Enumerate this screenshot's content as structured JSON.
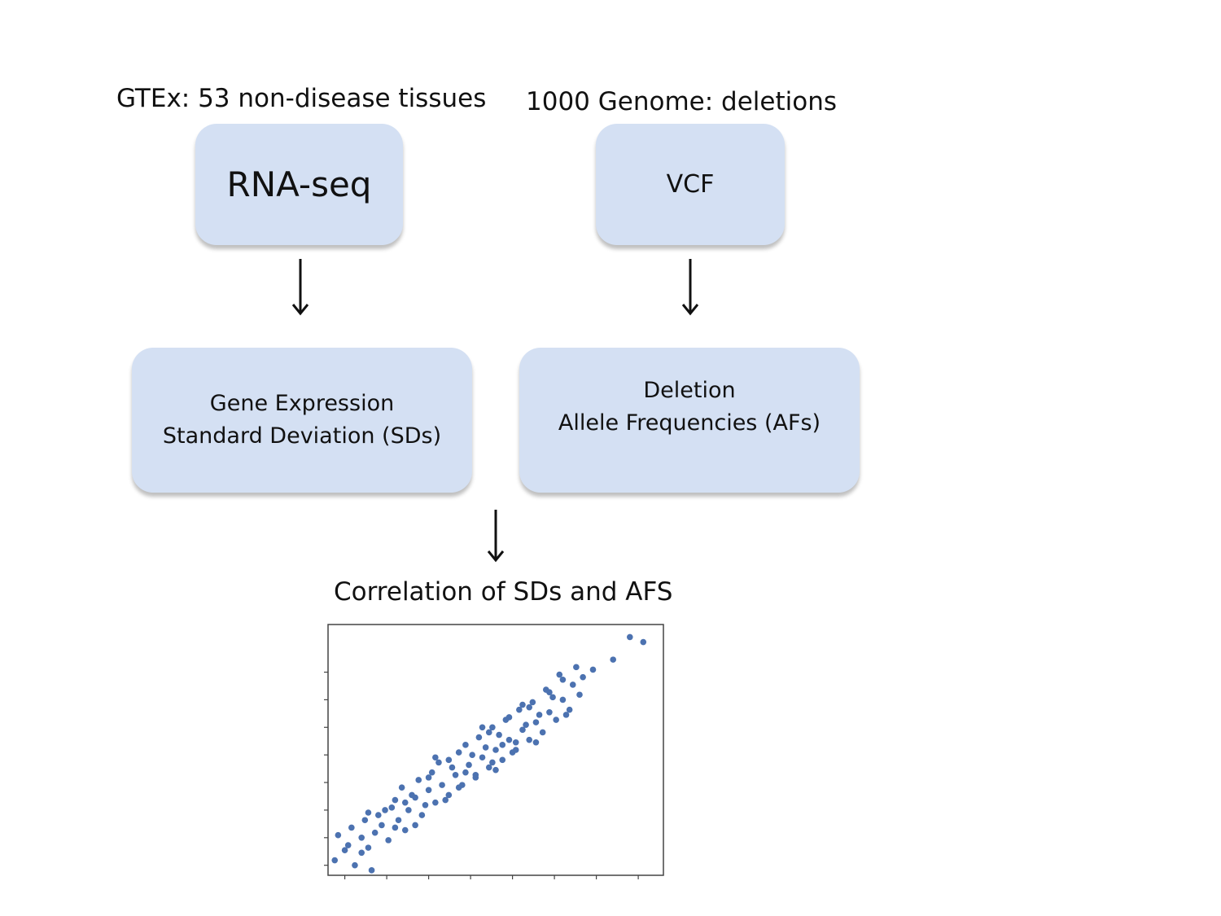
{
  "diagram": {
    "left_source_label": "GTEx: 53 non-disease tissues",
    "right_source_label": "1000 Genome: deletions",
    "rna_box": {
      "label": "RNA-seq"
    },
    "vcf_box": {
      "label": "VCF"
    },
    "gene_box": {
      "line1": "Gene Expression",
      "line2": "Standard Deviation (SDs)"
    },
    "deletion_box": {
      "line1": "Deletion",
      "line2": "Allele Frequencies (AFs)"
    },
    "result_label": "Correlation of SDs and AFS",
    "colors": {
      "box_fill": "#d4e0f3",
      "arrow": "#111111",
      "point": "#4c72b0"
    }
  },
  "chart_data": {
    "type": "scatter",
    "title": "",
    "xlabel": "",
    "ylabel": "",
    "xlim": [
      0,
      10
    ],
    "ylim": [
      0,
      10
    ],
    "grid": false,
    "x_ticks": [
      0.5,
      1.75,
      3.0,
      4.25,
      5.5,
      6.75,
      8.0,
      9.25
    ],
    "y_ticks": [
      0.4,
      1.5,
      2.6,
      3.7,
      4.8,
      5.9,
      7.0,
      8.1
    ],
    "series": [
      {
        "color": "#4c72b0",
        "points": [
          [
            0.2,
            0.6
          ],
          [
            0.6,
            1.2
          ],
          [
            1.3,
            0.2
          ],
          [
            0.8,
            0.4
          ],
          [
            0.3,
            1.6
          ],
          [
            0.7,
            1.9
          ],
          [
            1.0,
            1.5
          ],
          [
            1.2,
            1.1
          ],
          [
            1.4,
            1.7
          ],
          [
            1.6,
            2.0
          ],
          [
            1.1,
            2.2
          ],
          [
            1.8,
            1.4
          ],
          [
            1.5,
            2.4
          ],
          [
            1.9,
            2.7
          ],
          [
            2.1,
            2.2
          ],
          [
            2.3,
            1.8
          ],
          [
            2.0,
            3.0
          ],
          [
            2.4,
            2.6
          ],
          [
            2.6,
            3.1
          ],
          [
            2.8,
            2.4
          ],
          [
            3.0,
            3.4
          ],
          [
            2.2,
            3.5
          ],
          [
            2.7,
            3.8
          ],
          [
            3.2,
            2.9
          ],
          [
            3.4,
            3.6
          ],
          [
            3.1,
            4.1
          ],
          [
            3.6,
            3.2
          ],
          [
            3.8,
            4.0
          ],
          [
            3.3,
            4.5
          ],
          [
            4.0,
            3.6
          ],
          [
            4.2,
            4.4
          ],
          [
            3.9,
            4.9
          ],
          [
            4.4,
            4.0
          ],
          [
            4.6,
            4.7
          ],
          [
            4.1,
            5.2
          ],
          [
            4.8,
            4.3
          ],
          [
            5.0,
            5.0
          ],
          [
            4.5,
            5.5
          ],
          [
            5.2,
            4.6
          ],
          [
            5.4,
            5.4
          ],
          [
            4.9,
            5.9
          ],
          [
            5.6,
            5.0
          ],
          [
            5.8,
            5.8
          ],
          [
            5.3,
            6.2
          ],
          [
            6.0,
            5.4
          ],
          [
            6.2,
            6.1
          ],
          [
            5.7,
            6.6
          ],
          [
            6.4,
            5.7
          ],
          [
            6.6,
            6.5
          ],
          [
            6.1,
            6.9
          ],
          [
            6.8,
            6.2
          ],
          [
            7.0,
            7.0
          ],
          [
            6.5,
            7.4
          ],
          [
            7.2,
            6.6
          ],
          [
            7.3,
            7.6
          ],
          [
            6.9,
            8.0
          ],
          [
            7.5,
            7.2
          ],
          [
            3.5,
            3.0
          ],
          [
            4.3,
            4.8
          ],
          [
            5.1,
            5.6
          ],
          [
            5.5,
            4.9
          ],
          [
            4.7,
            5.1
          ],
          [
            3.7,
            4.3
          ],
          [
            6.3,
            6.4
          ],
          [
            2.9,
            2.8
          ],
          [
            2.5,
            3.2
          ],
          [
            4.9,
            4.5
          ],
          [
            5.9,
            6.0
          ],
          [
            3.0,
            3.9
          ],
          [
            4.4,
            3.9
          ],
          [
            5.6,
            5.3
          ],
          [
            6.0,
            6.7
          ],
          [
            2.0,
            1.9
          ],
          [
            1.7,
            2.6
          ],
          [
            2.6,
            2.0
          ],
          [
            6.7,
            7.1
          ],
          [
            7.1,
            6.4
          ],
          [
            7.4,
            8.3
          ],
          [
            7.6,
            7.9
          ],
          [
            7.9,
            8.2
          ],
          [
            8.5,
            8.6
          ],
          [
            9.0,
            9.5
          ],
          [
            9.4,
            9.3
          ],
          [
            5.0,
            4.2
          ],
          [
            4.6,
            5.9
          ],
          [
            3.9,
            3.5
          ],
          [
            3.2,
            4.7
          ],
          [
            6.2,
            5.3
          ],
          [
            5.8,
            6.8
          ],
          [
            1.2,
            2.5
          ],
          [
            2.3,
            2.9
          ],
          [
            0.5,
            1.0
          ],
          [
            1.0,
            0.9
          ],
          [
            3.6,
            4.6
          ],
          [
            4.8,
            5.7
          ],
          [
            5.4,
            6.3
          ],
          [
            6.6,
            7.3
          ],
          [
            7.0,
            7.8
          ],
          [
            4.1,
            4.1
          ],
          [
            5.2,
            5.2
          ]
        ]
      }
    ]
  }
}
